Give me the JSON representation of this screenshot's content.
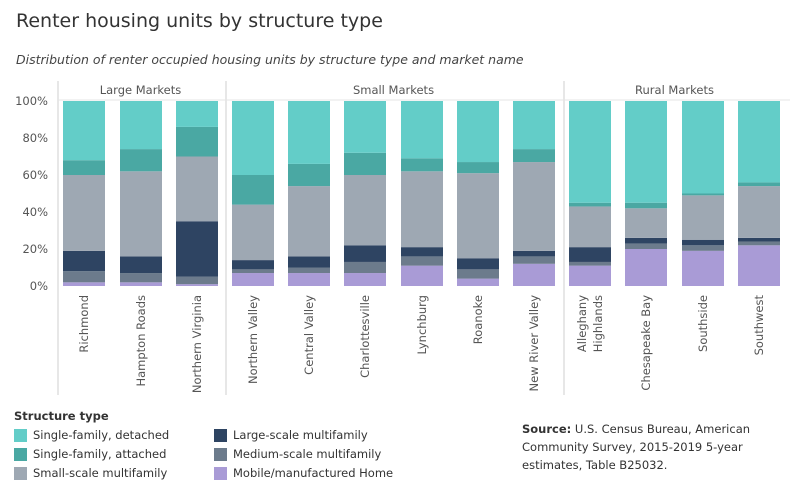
{
  "title": "Renter housing units by structure type",
  "subtitle": "Distribution of renter occupied housing units by structure type and market name",
  "legend_title": "Structure type",
  "source_label": "Source:",
  "source_text": "U.S. Census Bureau, American Community Survey, 2015-2019 5-year estimates, Table B25032.",
  "colors": {
    "Single-family, detached": "#63cdc8",
    "Single-family, attached": "#4aa8a3",
    "Small-scale multifamily": "#9ea8b3",
    "Large-scale multifamily": "#2e4462",
    "Medium-scale multifamily": "#6c7b8c",
    "Mobile/manufactured Home": "#a99bd6"
  },
  "legend": [
    {
      "label": "Single-family, detached",
      "color": "#63cdc8"
    },
    {
      "label": "Single-family, attached",
      "color": "#4aa8a3"
    },
    {
      "label": "Small-scale multifamily",
      "color": "#9ea8b3"
    },
    {
      "label": "Large-scale multifamily",
      "color": "#2e4462"
    },
    {
      "label": "Medium-scale multifamily",
      "color": "#6c7b8c"
    },
    {
      "label": "Mobile/manufactured Home",
      "color": "#a99bd6"
    }
  ],
  "chart_data": {
    "type": "bar",
    "stacked": true,
    "title": "Renter housing units by structure type",
    "subtitle": "Distribution of renter occupied housing units by structure type and market name",
    "ylim": [
      0,
      100
    ],
    "yticks": [
      "0%",
      "20%",
      "40%",
      "60%",
      "80%",
      "100%"
    ],
    "ytick_values": [
      0,
      20,
      40,
      60,
      80,
      100
    ],
    "groups": [
      {
        "name": "Large Markets",
        "categories": [
          "Richmond",
          "Hampton Roads",
          "Northern Virginia"
        ]
      },
      {
        "name": "Small Markets",
        "categories": [
          "Northern Valley",
          "Central Valley",
          "Charlottesville",
          "Lynchburg",
          "Roanoke",
          "New River Valley"
        ]
      },
      {
        "name": "Rural Markets",
        "categories": [
          "Alleghany Highlands",
          "Chesapeake Bay",
          "Southside",
          "Southwest"
        ]
      }
    ],
    "categories": [
      "Richmond",
      "Hampton Roads",
      "Northern Virginia",
      "Northern Valley",
      "Central Valley",
      "Charlottesville",
      "Lynchburg",
      "Roanoke",
      "New River Valley",
      "Alleghany Highlands",
      "Chesapeake Bay",
      "Southside",
      "Southwest"
    ],
    "series": [
      {
        "name": "Mobile/manufactured Home",
        "values": [
          2,
          2,
          1,
          7,
          7,
          7,
          11,
          4,
          12,
          11,
          20,
          19,
          22
        ]
      },
      {
        "name": "Medium-scale multifamily",
        "values": [
          6,
          5,
          4,
          2,
          3,
          6,
          5,
          5,
          4,
          2,
          3,
          3,
          2
        ]
      },
      {
        "name": "Large-scale multifamily",
        "values": [
          11,
          9,
          30,
          5,
          6,
          9,
          5,
          6,
          3,
          8,
          3,
          3,
          2
        ]
      },
      {
        "name": "Small-scale multifamily",
        "values": [
          41,
          46,
          35,
          30,
          38,
          38,
          41,
          46,
          48,
          22,
          16,
          24,
          28
        ]
      },
      {
        "name": "Single-family, attached",
        "values": [
          8,
          12,
          16,
          16,
          12,
          12,
          7,
          6,
          7,
          2,
          3,
          1,
          2
        ]
      },
      {
        "name": "Single-family, detached",
        "values": [
          32,
          26,
          14,
          40,
          34,
          28,
          31,
          33,
          26,
          55,
          55,
          50,
          44
        ]
      }
    ]
  }
}
